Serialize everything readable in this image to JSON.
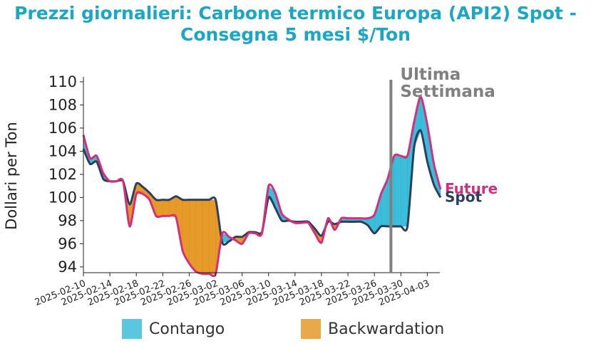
{
  "chart_data": {
    "type": "area",
    "title": "Prezzi giornalieri: Carbone termico Europa (API2) Spot - Consegna 5 mesi $/Ton",
    "title_color": "#1aa7c6",
    "xlabel": "",
    "ylabel": "Dollari per Ton",
    "ylim": [
      93.5,
      110.3
    ],
    "yticks": [
      94,
      96,
      98,
      100,
      102,
      104,
      106,
      108,
      110
    ],
    "xlim": [
      "2025-02-10",
      "2025-04-04"
    ],
    "xticks": [
      "2025-02-10",
      "2025-02-14",
      "2025-02-18",
      "2025-02-22",
      "2025-02-26",
      "2025-03-02",
      "2025-03-06",
      "2025-03-10",
      "2025-03-14",
      "2025-03-18",
      "2025-03-22",
      "2025-03-26",
      "2025-03-30",
      "2025-04-03"
    ],
    "grid": false,
    "legend_position": "bottom",
    "series": [
      {
        "name": "Spot",
        "color": "#2b3f5e",
        "points": [
          [
            "2025-02-10",
            104.2
          ],
          [
            "2025-02-11",
            102.9
          ],
          [
            "2025-02-12",
            103.1
          ],
          [
            "2025-02-13",
            101.6
          ],
          [
            "2025-02-14",
            101.4
          ],
          [
            "2025-02-15",
            101.4
          ],
          [
            "2025-02-16",
            101.4
          ],
          [
            "2025-02-17",
            99.4
          ],
          [
            "2025-02-18",
            101.2
          ],
          [
            "2025-02-19",
            100.9
          ],
          [
            "2025-02-20",
            100.4
          ],
          [
            "2025-02-21",
            99.8
          ],
          [
            "2025-02-22",
            99.8
          ],
          [
            "2025-02-23",
            99.8
          ],
          [
            "2025-02-24",
            100.1
          ],
          [
            "2025-02-25",
            99.8
          ],
          [
            "2025-02-26",
            99.8
          ],
          [
            "2025-02-27",
            99.8
          ],
          [
            "2025-02-28",
            99.8
          ],
          [
            "2025-03-01",
            99.8
          ],
          [
            "2025-03-02",
            99.8
          ],
          [
            "2025-03-03",
            96.1
          ],
          [
            "2025-03-04",
            96.2
          ],
          [
            "2025-03-05",
            96.6
          ],
          [
            "2025-03-06",
            96.6
          ],
          [
            "2025-03-07",
            97.0
          ],
          [
            "2025-03-08",
            97.0
          ],
          [
            "2025-03-09",
            97.0
          ],
          [
            "2025-03-10",
            100.0
          ],
          [
            "2025-03-11",
            99.1
          ],
          [
            "2025-03-12",
            98.0
          ],
          [
            "2025-03-13",
            98.0
          ],
          [
            "2025-03-14",
            97.9
          ],
          [
            "2025-03-15",
            97.9
          ],
          [
            "2025-03-16",
            97.9
          ],
          [
            "2025-03-17",
            97.3
          ],
          [
            "2025-03-18",
            96.7
          ],
          [
            "2025-03-19",
            97.9
          ],
          [
            "2025-03-20",
            97.7
          ],
          [
            "2025-03-21",
            97.9
          ],
          [
            "2025-03-22",
            97.9
          ],
          [
            "2025-03-23",
            97.9
          ],
          [
            "2025-03-24",
            97.9
          ],
          [
            "2025-03-25",
            97.6
          ],
          [
            "2025-03-26",
            96.9
          ],
          [
            "2025-03-27",
            97.5
          ],
          [
            "2025-03-28",
            97.5
          ],
          [
            "2025-03-29",
            97.5
          ],
          [
            "2025-03-30",
            97.5
          ],
          [
            "2025-03-31",
            97.5
          ],
          [
            "2025-04-01",
            104.3
          ],
          [
            "2025-04-02",
            105.8
          ],
          [
            "2025-04-03",
            103.1
          ],
          [
            "2025-04-04",
            101.1
          ],
          [
            "2025-04-05",
            100.0
          ]
        ]
      },
      {
        "name": "Future",
        "color": "#d62e7a",
        "points": [
          [
            "2025-02-10",
            105.4
          ],
          [
            "2025-02-11",
            103.4
          ],
          [
            "2025-02-12",
            103.6
          ],
          [
            "2025-02-13",
            102.1
          ],
          [
            "2025-02-14",
            101.4
          ],
          [
            "2025-02-15",
            101.4
          ],
          [
            "2025-02-16",
            101.4
          ],
          [
            "2025-02-17",
            97.5
          ],
          [
            "2025-02-18",
            100.3
          ],
          [
            "2025-02-19",
            100.3
          ],
          [
            "2025-02-20",
            99.8
          ],
          [
            "2025-02-21",
            98.4
          ],
          [
            "2025-02-22",
            98.4
          ],
          [
            "2025-02-23",
            98.4
          ],
          [
            "2025-02-24",
            98.3
          ],
          [
            "2025-02-25",
            95.4
          ],
          [
            "2025-02-26",
            94.3
          ],
          [
            "2025-02-27",
            93.6
          ],
          [
            "2025-02-28",
            93.4
          ],
          [
            "2025-03-01",
            93.4
          ],
          [
            "2025-03-02",
            93.4
          ],
          [
            "2025-03-03",
            96.9
          ],
          [
            "2025-03-04",
            96.6
          ],
          [
            "2025-03-05",
            96.3
          ],
          [
            "2025-03-06",
            96.0
          ],
          [
            "2025-03-07",
            96.9
          ],
          [
            "2025-03-08",
            96.9
          ],
          [
            "2025-03-09",
            96.9
          ],
          [
            "2025-03-10",
            101.0
          ],
          [
            "2025-03-11",
            100.4
          ],
          [
            "2025-03-12",
            98.6
          ],
          [
            "2025-03-13",
            98.1
          ],
          [
            "2025-03-14",
            97.8
          ],
          [
            "2025-03-15",
            97.8
          ],
          [
            "2025-03-16",
            97.8
          ],
          [
            "2025-03-17",
            96.9
          ],
          [
            "2025-03-18",
            96.1
          ],
          [
            "2025-03-19",
            98.2
          ],
          [
            "2025-03-20",
            97.2
          ],
          [
            "2025-03-21",
            98.2
          ],
          [
            "2025-03-22",
            98.2
          ],
          [
            "2025-03-23",
            98.2
          ],
          [
            "2025-03-24",
            98.2
          ],
          [
            "2025-03-25",
            98.2
          ],
          [
            "2025-03-26",
            98.5
          ],
          [
            "2025-03-27",
            100.3
          ],
          [
            "2025-03-28",
            101.6
          ],
          [
            "2025-03-29",
            103.6
          ],
          [
            "2025-03-30",
            103.6
          ],
          [
            "2025-03-31",
            103.6
          ],
          [
            "2025-04-01",
            106.5
          ],
          [
            "2025-04-02",
            108.7
          ],
          [
            "2025-04-03",
            106.3
          ],
          [
            "2025-04-04",
            102.9
          ],
          [
            "2025-04-05",
            100.7
          ]
        ]
      }
    ],
    "fills": [
      {
        "name": "Contango",
        "color": "#2bb7d6"
      },
      {
        "name": "Backwardation",
        "color": "#e39118"
      }
    ],
    "annotations": [
      {
        "text_lines": [
          "Ultima",
          "Settimana"
        ],
        "x": "2025-03-28",
        "color": "#808080"
      }
    ]
  }
}
